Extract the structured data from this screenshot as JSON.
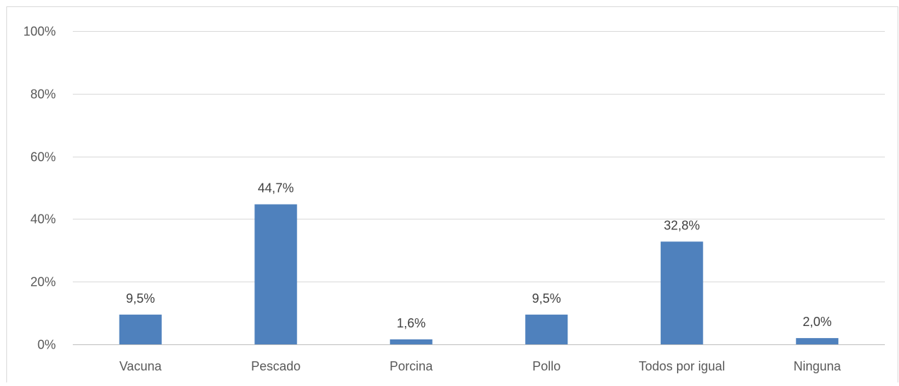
{
  "chart_data": {
    "type": "bar",
    "categories": [
      "Vacuna",
      "Pescado",
      "Porcina",
      "Pollo",
      "Todos por igual",
      "Ninguna"
    ],
    "values": [
      9.5,
      44.7,
      1.6,
      9.5,
      32.8,
      2.0
    ],
    "data_labels": [
      "9,5%",
      "44,7%",
      "1,6%",
      "9,5%",
      "32,8%",
      "2,0%"
    ],
    "ylim": [
      0,
      100
    ],
    "yticks": [
      0,
      20,
      40,
      60,
      80,
      100
    ],
    "ytick_labels": [
      "0%",
      "20%",
      "40%",
      "60%",
      "80%",
      "100%"
    ],
    "grid": true,
    "legend": "none",
    "bar_color": "#4f81bd",
    "title": "",
    "xlabel": "",
    "ylabel": ""
  }
}
